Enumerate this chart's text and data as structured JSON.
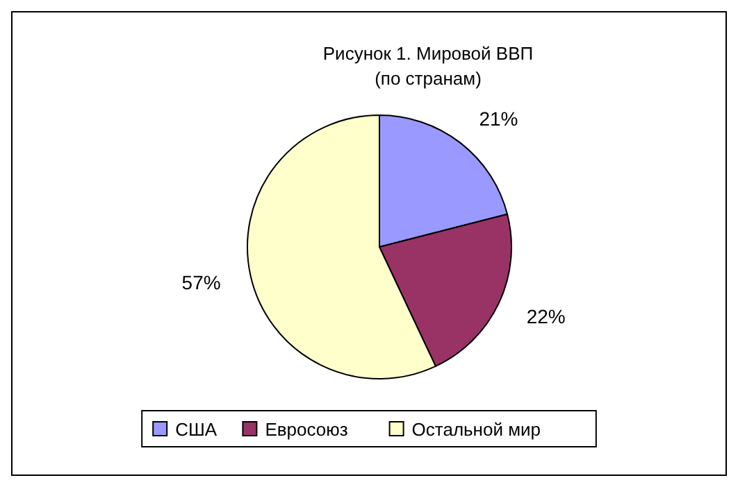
{
  "chart_data": {
    "type": "pie",
    "title": "Рисунок 1. Мировой ВВП",
    "subtitle": "(по странам)",
    "categories": [
      "США",
      "Евросоюз",
      "Остальной мир"
    ],
    "values": [
      21,
      22,
      57
    ],
    "colors": [
      "#9999ff",
      "#993366",
      "#ffffcc"
    ],
    "value_labels": [
      "21%",
      "22%",
      "57%"
    ],
    "legend": "bottom"
  }
}
